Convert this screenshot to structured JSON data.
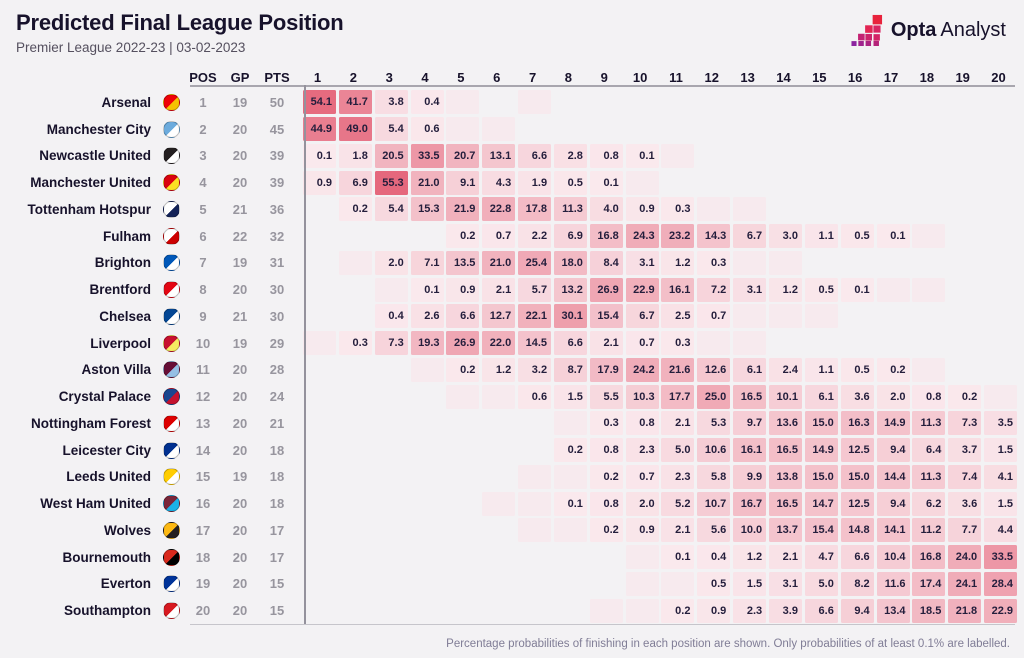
{
  "header": {
    "title": "Predicted Final League Position",
    "subtitle": "Premier League 2022-23 | 03-02-2023"
  },
  "logo": {
    "brand_bold": "Opta",
    "brand_light": "Analyst"
  },
  "table_headers": {
    "pos": "POS",
    "gp": "GP",
    "pts": "PTS"
  },
  "footer": {
    "note": "Percentage probabilities of finishing in each position are shown. Only probabilities of at least 0.1% are labelled."
  },
  "colors": {
    "heat_low": "#fae9ed",
    "heat_high": "#e5677c",
    "heat_trace": "#f7eaee",
    "title_text": "#17122b",
    "muted_text": "#97959e"
  },
  "chart_data": {
    "type": "heatmap",
    "title": "Predicted Final League Position",
    "subtitle": "Premier League 2022-23 | 03-02-2023",
    "x_labels": [
      1,
      2,
      3,
      4,
      5,
      6,
      7,
      8,
      9,
      10,
      11,
      12,
      13,
      14,
      15,
      16,
      17,
      18,
      19,
      20
    ],
    "value_unit": "%",
    "trace_token": "<0.1",
    "trace_meaning": "shaded cell with probability below 0.1%, unlabelled",
    "note": "Percentage probabilities of finishing in each position are shown. Only probabilities of at least 0.1% are labelled.",
    "rows": [
      {
        "team": "Arsenal",
        "pos": 1,
        "gp": 19,
        "pts": 50,
        "crest": [
          "#ef0107",
          "#f6c201"
        ],
        "probs": [
          54.1,
          41.7,
          3.8,
          0.4,
          "<0.1",
          null,
          "<0.1",
          null,
          null,
          null,
          null,
          null,
          null,
          null,
          null,
          null,
          null,
          null,
          null,
          null
        ]
      },
      {
        "team": "Manchester City",
        "pos": 2,
        "gp": 20,
        "pts": 45,
        "crest": [
          "#6cabdd",
          "#ffffff"
        ],
        "probs": [
          44.9,
          49.0,
          5.4,
          0.6,
          "<0.1",
          "<0.1",
          null,
          null,
          null,
          null,
          null,
          null,
          null,
          null,
          null,
          null,
          null,
          null,
          null,
          null
        ]
      },
      {
        "team": "Newcastle United",
        "pos": 3,
        "gp": 20,
        "pts": 39,
        "crest": [
          "#241f20",
          "#ffffff"
        ],
        "probs": [
          0.1,
          1.8,
          20.5,
          33.5,
          20.7,
          13.1,
          6.6,
          2.8,
          0.8,
          0.1,
          "<0.1",
          null,
          null,
          null,
          null,
          null,
          null,
          null,
          null,
          null
        ]
      },
      {
        "team": "Manchester United",
        "pos": 4,
        "gp": 20,
        "pts": 39,
        "crest": [
          "#da020e",
          "#fbe122"
        ],
        "probs": [
          0.9,
          6.9,
          55.3,
          21.0,
          9.1,
          4.3,
          1.9,
          0.5,
          0.1,
          "<0.1",
          null,
          null,
          null,
          null,
          null,
          null,
          null,
          null,
          null,
          null
        ]
      },
      {
        "team": "Tottenham Hotspur",
        "pos": 5,
        "gp": 21,
        "pts": 36,
        "crest": [
          "#ffffff",
          "#132257"
        ],
        "probs": [
          null,
          0.2,
          5.4,
          15.3,
          21.9,
          22.8,
          17.8,
          11.3,
          4.0,
          0.9,
          0.3,
          "<0.1",
          "<0.1",
          null,
          null,
          null,
          null,
          null,
          null,
          null
        ]
      },
      {
        "team": "Fulham",
        "pos": 6,
        "gp": 22,
        "pts": 32,
        "crest": [
          "#ffffff",
          "#cc0000"
        ],
        "probs": [
          null,
          null,
          null,
          null,
          0.2,
          0.7,
          2.2,
          6.9,
          16.8,
          24.3,
          23.2,
          14.3,
          6.7,
          3.0,
          1.1,
          0.5,
          0.1,
          "<0.1",
          null,
          null
        ]
      },
      {
        "team": "Brighton",
        "pos": 7,
        "gp": 19,
        "pts": 31,
        "crest": [
          "#0057b8",
          "#ffffff"
        ],
        "probs": [
          null,
          "<0.1",
          2.0,
          7.1,
          13.5,
          21.0,
          25.4,
          18.0,
          8.4,
          3.1,
          1.2,
          0.3,
          "<0.1",
          "<0.1",
          null,
          null,
          null,
          null,
          null,
          null
        ]
      },
      {
        "team": "Brentford",
        "pos": 8,
        "gp": 20,
        "pts": 30,
        "crest": [
          "#e30613",
          "#ffffff"
        ],
        "probs": [
          null,
          null,
          "<0.1",
          0.1,
          0.9,
          2.1,
          5.7,
          13.2,
          26.9,
          22.9,
          16.1,
          7.2,
          3.1,
          1.2,
          0.5,
          0.1,
          "<0.1",
          "<0.1",
          null,
          null
        ]
      },
      {
        "team": "Chelsea",
        "pos": 9,
        "gp": 21,
        "pts": 30,
        "crest": [
          "#034694",
          "#ffffff"
        ],
        "probs": [
          null,
          null,
          0.4,
          2.6,
          6.6,
          12.7,
          22.1,
          30.1,
          15.4,
          6.7,
          2.5,
          0.7,
          "<0.1",
          "<0.1",
          "<0.1",
          null,
          null,
          null,
          null,
          null
        ]
      },
      {
        "team": "Liverpool",
        "pos": 10,
        "gp": 19,
        "pts": 29,
        "crest": [
          "#c8102e",
          "#f6eb61"
        ],
        "probs": [
          "<0.1",
          0.3,
          7.3,
          19.3,
          26.9,
          22.0,
          14.5,
          6.6,
          2.1,
          0.7,
          0.3,
          "<0.1",
          "<0.1",
          null,
          null,
          null,
          null,
          null,
          null,
          null
        ]
      },
      {
        "team": "Aston Villa",
        "pos": 11,
        "gp": 20,
        "pts": 28,
        "crest": [
          "#670e36",
          "#95bfe5"
        ],
        "probs": [
          null,
          null,
          null,
          "<0.1",
          0.2,
          1.2,
          3.2,
          8.7,
          17.9,
          24.2,
          21.6,
          12.6,
          6.1,
          2.4,
          1.1,
          0.5,
          0.2,
          "<0.1",
          null,
          null
        ]
      },
      {
        "team": "Crystal Palace",
        "pos": 12,
        "gp": 20,
        "pts": 24,
        "crest": [
          "#1b458f",
          "#c4122e"
        ],
        "probs": [
          null,
          null,
          null,
          null,
          "<0.1",
          "<0.1",
          0.6,
          1.5,
          5.5,
          10.3,
          17.7,
          25.0,
          16.5,
          10.1,
          6.1,
          3.6,
          2.0,
          0.8,
          0.2,
          "<0.1"
        ]
      },
      {
        "team": "Nottingham Forest",
        "pos": 13,
        "gp": 20,
        "pts": 21,
        "crest": [
          "#dd0000",
          "#ffffff"
        ],
        "probs": [
          null,
          null,
          null,
          null,
          null,
          null,
          null,
          "<0.1",
          0.3,
          0.8,
          2.1,
          5.3,
          9.7,
          13.6,
          15.0,
          16.3,
          14.9,
          11.3,
          7.3,
          3.5
        ]
      },
      {
        "team": "Leicester City",
        "pos": 14,
        "gp": 20,
        "pts": 18,
        "crest": [
          "#003090",
          "#ffffff"
        ],
        "probs": [
          null,
          null,
          null,
          null,
          null,
          null,
          null,
          0.2,
          0.8,
          2.3,
          5.0,
          10.6,
          16.1,
          16.5,
          14.9,
          12.5,
          9.4,
          6.4,
          3.7,
          1.5
        ]
      },
      {
        "team": "Leeds United",
        "pos": 15,
        "gp": 19,
        "pts": 18,
        "crest": [
          "#ffcd00",
          "#ffffff"
        ],
        "probs": [
          null,
          null,
          null,
          null,
          null,
          null,
          "<0.1",
          "<0.1",
          0.2,
          0.7,
          2.3,
          5.8,
          9.9,
          13.8,
          15.0,
          15.0,
          14.4,
          11.3,
          7.4,
          4.1
        ]
      },
      {
        "team": "West Ham United",
        "pos": 16,
        "gp": 20,
        "pts": 18,
        "crest": [
          "#7a263a",
          "#1bb1e7"
        ],
        "probs": [
          null,
          null,
          null,
          null,
          null,
          "<0.1",
          "<0.1",
          0.1,
          0.8,
          2.0,
          5.2,
          10.7,
          16.7,
          16.5,
          14.7,
          12.5,
          9.4,
          6.2,
          3.6,
          1.5
        ]
      },
      {
        "team": "Wolves",
        "pos": 17,
        "gp": 20,
        "pts": 17,
        "crest": [
          "#fdb913",
          "#231f20"
        ],
        "probs": [
          null,
          null,
          null,
          null,
          null,
          null,
          "<0.1",
          "<0.1",
          0.2,
          0.9,
          2.1,
          5.6,
          10.0,
          13.7,
          15.4,
          14.8,
          14.1,
          11.2,
          7.7,
          4.4
        ]
      },
      {
        "team": "Bournemouth",
        "pos": 18,
        "gp": 20,
        "pts": 17,
        "crest": [
          "#da291c",
          "#000000"
        ],
        "probs": [
          null,
          null,
          null,
          null,
          null,
          null,
          null,
          null,
          null,
          "<0.1",
          0.1,
          0.4,
          1.2,
          2.1,
          4.7,
          6.6,
          10.4,
          16.8,
          24.0,
          33.5
        ]
      },
      {
        "team": "Everton",
        "pos": 19,
        "gp": 20,
        "pts": 15,
        "crest": [
          "#003399",
          "#ffffff"
        ],
        "probs": [
          null,
          null,
          null,
          null,
          null,
          null,
          null,
          null,
          null,
          "<0.1",
          "<0.1",
          0.5,
          1.5,
          3.1,
          5.0,
          8.2,
          11.6,
          17.4,
          24.1,
          28.4
        ]
      },
      {
        "team": "Southampton",
        "pos": 20,
        "gp": 20,
        "pts": 15,
        "crest": [
          "#d71920",
          "#ffffff"
        ],
        "probs": [
          null,
          null,
          null,
          null,
          null,
          null,
          null,
          null,
          "<0.1",
          "<0.1",
          0.2,
          0.9,
          2.3,
          3.9,
          6.6,
          9.4,
          13.4,
          18.5,
          21.8,
          22.9
        ]
      }
    ]
  }
}
